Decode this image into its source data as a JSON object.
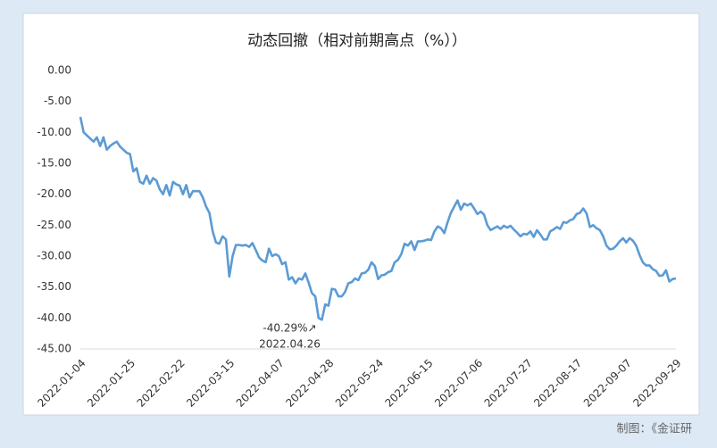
{
  "chart_data": {
    "type": "line",
    "title": "动态回撤（相对前期高点（%））",
    "source": "制图：《金证研",
    "annotation": {
      "text": "-40.29%↗",
      "date": "2022.04.26",
      "index": 73
    },
    "categories": [
      "2022-01-04",
      null,
      null,
      null,
      null,
      null,
      null,
      null,
      null,
      null,
      null,
      null,
      null,
      null,
      null,
      "2022-01-25",
      null,
      null,
      null,
      null,
      null,
      null,
      null,
      null,
      null,
      null,
      null,
      null,
      null,
      null,
      "2022-02-22",
      null,
      null,
      null,
      null,
      null,
      null,
      null,
      null,
      null,
      null,
      null,
      null,
      null,
      null,
      "2022-03-15",
      null,
      null,
      null,
      null,
      null,
      null,
      null,
      null,
      null,
      null,
      null,
      null,
      null,
      null,
      "2022-04-07",
      null,
      null,
      null,
      null,
      null,
      null,
      null,
      null,
      null,
      null,
      null,
      null,
      null,
      null,
      "2022-04-28",
      null,
      null,
      null,
      null,
      null,
      null,
      null,
      null,
      null,
      null,
      null,
      null,
      null,
      null,
      "2022-05-24",
      null,
      null,
      null,
      null,
      null,
      null,
      null,
      null,
      null,
      null,
      null,
      null,
      null,
      null,
      "2022-06-15",
      null,
      null,
      null,
      null,
      null,
      null,
      null,
      null,
      null,
      null,
      null,
      null,
      null,
      null,
      "2022-07-06",
      null,
      null,
      null,
      null,
      null,
      null,
      null,
      null,
      null,
      null,
      null,
      null,
      null,
      null,
      "2022-07-27",
      null,
      null,
      null,
      null,
      null,
      null,
      null,
      null,
      null,
      null,
      null,
      null,
      null,
      null,
      "2022-08-17",
      null,
      null,
      null,
      null,
      null,
      null,
      null,
      null,
      null,
      null,
      null,
      null,
      null,
      null,
      "2022-09-07",
      null,
      null,
      null,
      null,
      null,
      null,
      null,
      null,
      null,
      null,
      null,
      null,
      null,
      null,
      "2022-09-29"
    ],
    "series": [
      {
        "name": "动态回撤",
        "color": "#5b9bd5",
        "values": [
          -7.5,
          -10,
          -10.5,
          -11,
          -11.5,
          -10.8,
          -12.2,
          -10.8,
          -12.8,
          -12.2,
          -11.8,
          -11.5,
          -12.3,
          -12.8,
          -13.3,
          -13.5,
          -16.3,
          -15.8,
          -18,
          -18.3,
          -17,
          -18.3,
          -17.4,
          -17.8,
          -19.2,
          -20,
          -18.5,
          -20.2,
          -18,
          -18.4,
          -18.6,
          -20,
          -18.5,
          -20.5,
          -19.5,
          -19.5,
          -19.5,
          -20.5,
          -22,
          -23,
          -26,
          -27.8,
          -28,
          -26.8,
          -27.3,
          -33.3,
          -30,
          -28.2,
          -28.2,
          -28.3,
          -28.2,
          -28.5,
          -27.9,
          -29,
          -30.2,
          -30.7,
          -31,
          -28.8,
          -30,
          -29.7,
          -30,
          -31.3,
          -31,
          -33.8,
          -33.4,
          -34.4,
          -33.6,
          -33.8,
          -32.8,
          -34.3,
          -36,
          -36.5,
          -40,
          -40.29,
          -37.8,
          -38,
          -35.3,
          -35.4,
          -36.5,
          -36.5,
          -35.8,
          -34.4,
          -34.2,
          -33.6,
          -33.9,
          -32.8,
          -32.7,
          -32.2,
          -31,
          -31.6,
          -33.7,
          -33.1,
          -33,
          -32.6,
          -32.4,
          -31,
          -30.6,
          -29.7,
          -28,
          -28.3,
          -27.6,
          -29,
          -27.6,
          -27.6,
          -27.5,
          -27.3,
          -27.4,
          -26,
          -25.2,
          -25.5,
          -26.3,
          -24.5,
          -23,
          -22,
          -21,
          -22.5,
          -21.5,
          -21.8,
          -21.5,
          -22.3,
          -23.2,
          -22.8,
          -23.3,
          -25,
          -25.8,
          -25.5,
          -25.2,
          -25.6,
          -25.1,
          -25.4,
          -25.1,
          -25.7,
          -26.2,
          -26.8,
          -26.4,
          -26.5,
          -26,
          -26.9,
          -25.8,
          -26.5,
          -27.3,
          -27.3,
          -26,
          -25.7,
          -25.3,
          -25.6,
          -24.5,
          -24.6,
          -24.2,
          -24,
          -23.2,
          -23,
          -22.3,
          -23.1,
          -25.3,
          -25,
          -25.5,
          -25.8,
          -26.8,
          -28.3,
          -28.9,
          -28.8,
          -28.3,
          -27.6,
          -27.1,
          -27.8,
          -27.1,
          -27.5,
          -28.3,
          -29.8,
          -31,
          -31.5,
          -31.5,
          -32.1,
          -32.4,
          -33.2,
          -33.1,
          -32.3,
          -34.1,
          -33.7,
          -33.6
        ]
      }
    ],
    "ylim": [
      -45,
      0
    ],
    "yticks": [
      {
        "value": 0,
        "label": "0.00"
      },
      {
        "value": -5,
        "label": "-5.00"
      },
      {
        "value": -10,
        "label": "-10.00"
      },
      {
        "value": -15,
        "label": "-15.00"
      },
      {
        "value": -20,
        "label": "-20.00"
      },
      {
        "value": -25,
        "label": "-25.00"
      },
      {
        "value": -30,
        "label": "-30.00"
      },
      {
        "value": -35,
        "label": "-35.00"
      },
      {
        "value": -40,
        "label": "-40.00"
      },
      {
        "value": -45,
        "label": "-45.00"
      }
    ],
    "grid": false
  }
}
